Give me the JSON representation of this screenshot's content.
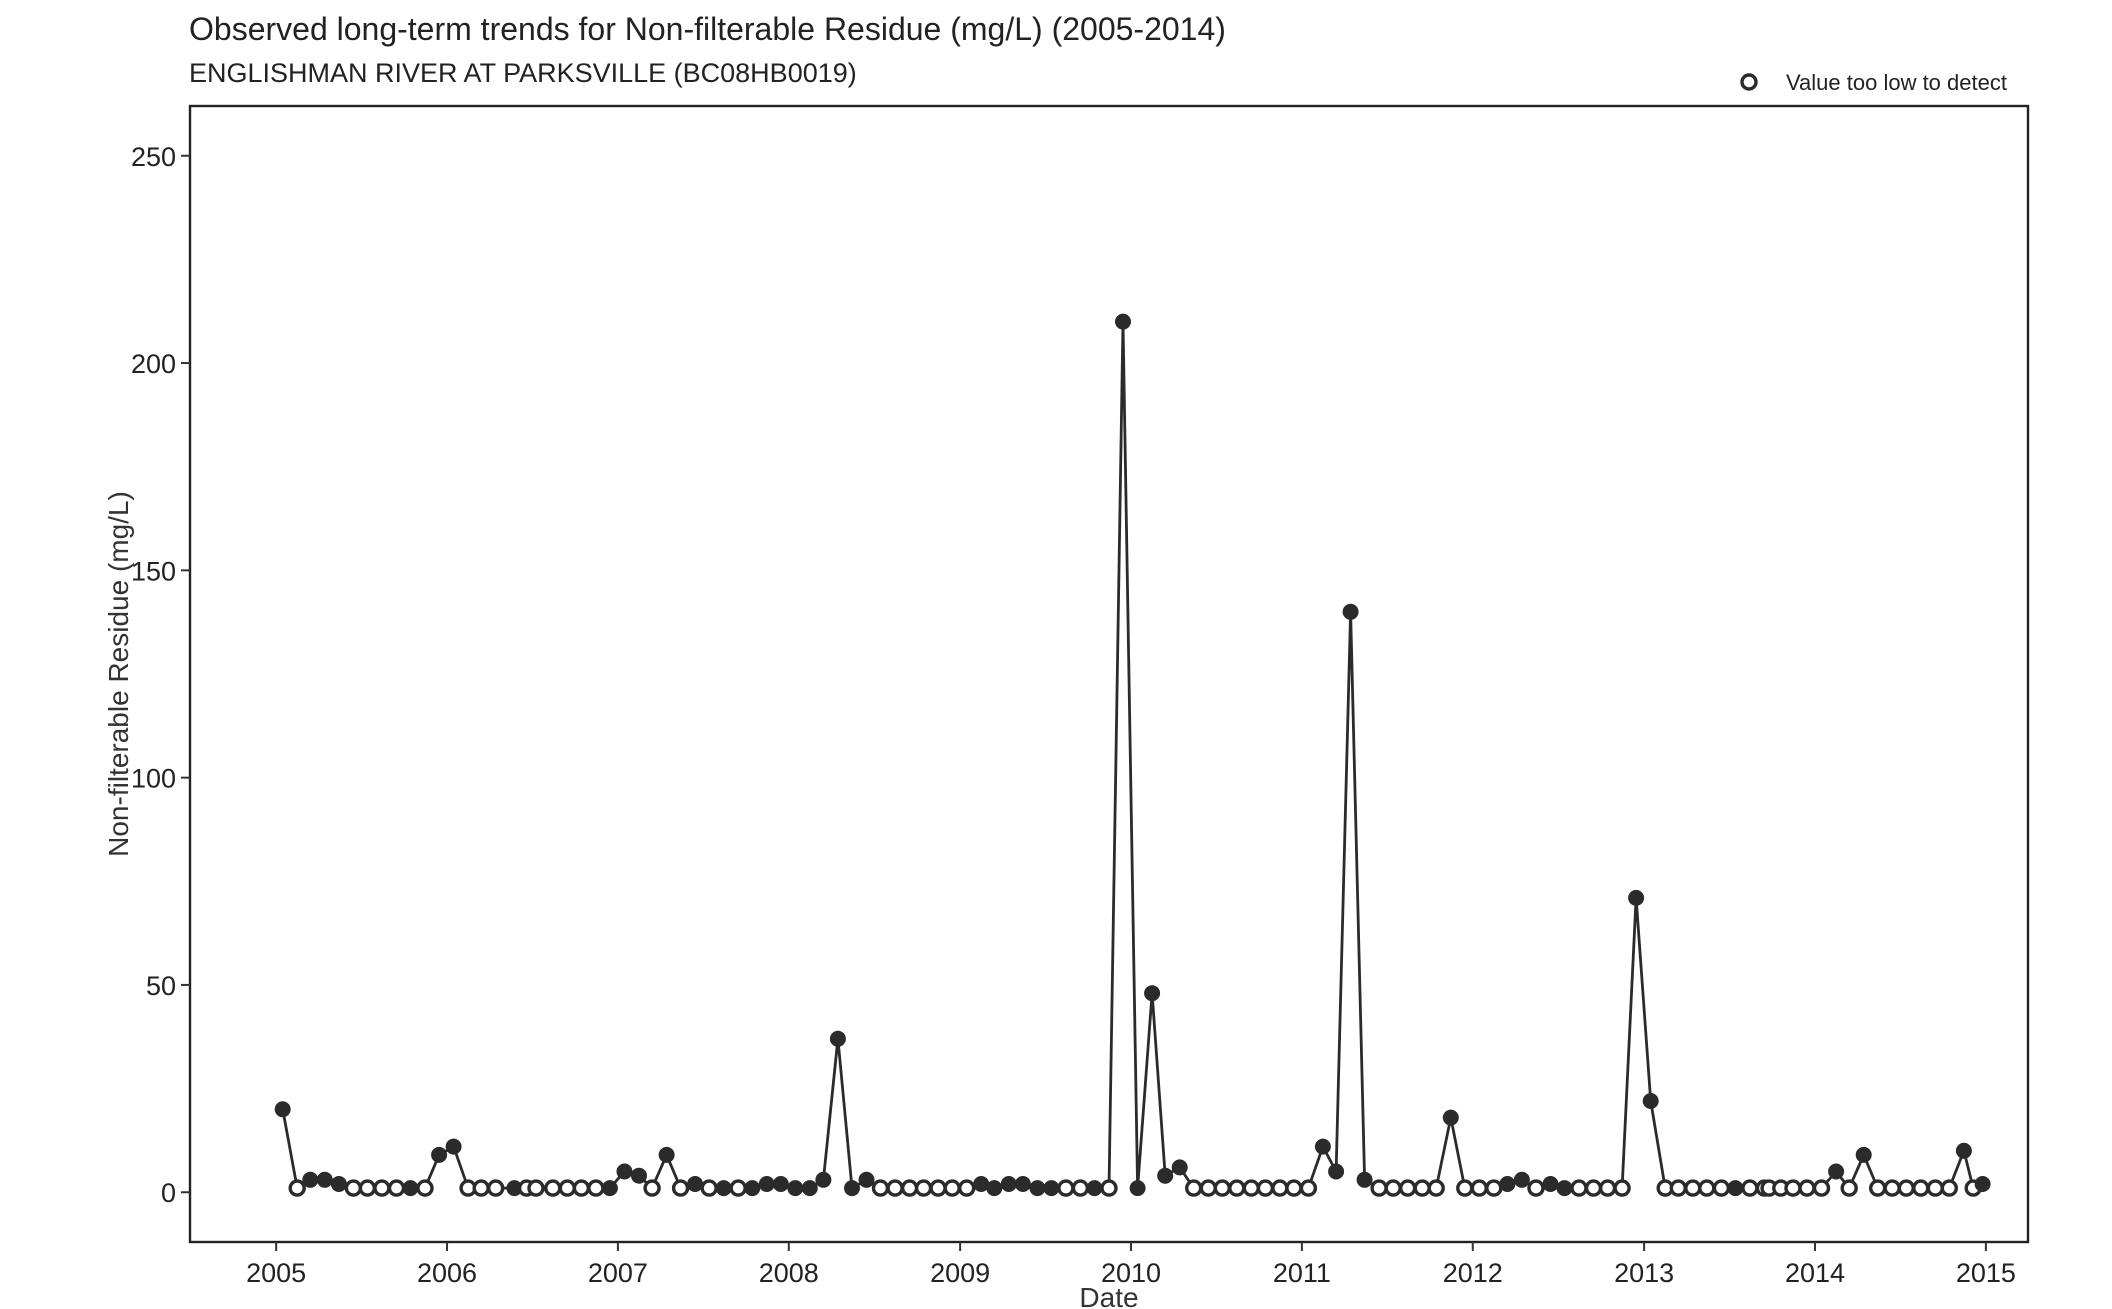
{
  "chart_data": {
    "type": "scatter",
    "title": "Observed long-term trends for Non-filterable Residue (mg/L) (2005-2014)",
    "subtitle": "ENGLISHMAN RIVER AT PARKSVILLE (BC08HB0019)",
    "xlabel": "Date",
    "ylabel": "Non-filterable Residue (mg/L)",
    "xlim": [
      "2004-07-01",
      "2015-04-01"
    ],
    "ylim": [
      -12,
      262
    ],
    "x_ticks": [
      "2005",
      "2006",
      "2007",
      "2008",
      "2009",
      "2010",
      "2011",
      "2012",
      "2013",
      "2014",
      "2015"
    ],
    "y_ticks": [
      0,
      50,
      100,
      150,
      200,
      250
    ],
    "grid": false,
    "legend": {
      "position": "top-right",
      "entries": [
        {
          "label": "Value too low to detect",
          "marker": "open-circle"
        }
      ]
    },
    "series": [
      {
        "connected": true,
        "points": [
          {
            "x": "2005-01-15",
            "y": 20,
            "dl": false
          },
          {
            "x": "2005-02-15",
            "y": 1,
            "dl": true
          },
          {
            "x": "2005-03-15",
            "y": 3,
            "dl": false
          },
          {
            "x": "2005-04-15",
            "y": 3,
            "dl": false
          },
          {
            "x": "2005-05-15",
            "y": 2,
            "dl": false
          },
          {
            "x": "2005-06-15",
            "y": 1,
            "dl": true
          },
          {
            "x": "2005-07-15",
            "y": 1,
            "dl": true
          },
          {
            "x": "2005-08-15",
            "y": 1,
            "dl": true
          },
          {
            "x": "2005-09-15",
            "y": 1,
            "dl": true
          },
          {
            "x": "2005-10-15",
            "y": 1,
            "dl": false
          },
          {
            "x": "2005-11-15",
            "y": 1,
            "dl": true
          },
          {
            "x": "2005-12-15",
            "y": 9,
            "dl": false
          },
          {
            "x": "2006-01-15",
            "y": 11,
            "dl": false
          },
          {
            "x": "2006-02-15",
            "y": 1,
            "dl": true
          },
          {
            "x": "2006-03-15",
            "y": 1,
            "dl": true
          },
          {
            "x": "2006-04-15",
            "y": 1,
            "dl": true
          },
          {
            "x": "2006-05-25",
            "y": 1,
            "dl": false
          },
          {
            "x": "2006-06-20",
            "y": 1,
            "dl": true
          },
          {
            "x": "2006-07-10",
            "y": 1,
            "dl": true
          },
          {
            "x": "2006-08-15",
            "y": 1,
            "dl": true
          },
          {
            "x": "2006-09-15",
            "y": 1,
            "dl": true
          },
          {
            "x": "2006-10-15",
            "y": 1,
            "dl": true
          },
          {
            "x": "2006-11-15",
            "y": 1,
            "dl": true
          },
          {
            "x": "2006-12-15",
            "y": 1,
            "dl": false
          },
          {
            "x": "2007-01-15",
            "y": 5,
            "dl": false
          },
          {
            "x": "2007-02-15",
            "y": 4,
            "dl": false
          },
          {
            "x": "2007-03-15",
            "y": 1,
            "dl": true
          },
          {
            "x": "2007-04-15",
            "y": 9,
            "dl": false
          },
          {
            "x": "2007-05-15",
            "y": 1,
            "dl": true
          },
          {
            "x": "2007-06-15",
            "y": 2,
            "dl": false
          },
          {
            "x": "2007-07-15",
            "y": 1,
            "dl": true
          },
          {
            "x": "2007-08-15",
            "y": 1,
            "dl": false
          },
          {
            "x": "2007-09-15",
            "y": 1,
            "dl": true
          },
          {
            "x": "2007-10-15",
            "y": 1,
            "dl": false
          },
          {
            "x": "2007-11-15",
            "y": 2,
            "dl": false
          },
          {
            "x": "2007-12-15",
            "y": 2,
            "dl": false
          },
          {
            "x": "2008-01-15",
            "y": 1,
            "dl": false
          },
          {
            "x": "2008-02-15",
            "y": 1,
            "dl": false
          },
          {
            "x": "2008-03-15",
            "y": 3,
            "dl": false
          },
          {
            "x": "2008-04-15",
            "y": 37,
            "dl": false
          },
          {
            "x": "2008-05-15",
            "y": 1,
            "dl": false
          },
          {
            "x": "2008-06-15",
            "y": 3,
            "dl": false
          },
          {
            "x": "2008-07-15",
            "y": 1,
            "dl": true
          },
          {
            "x": "2008-08-15",
            "y": 1,
            "dl": true
          },
          {
            "x": "2008-09-15",
            "y": 1,
            "dl": true
          },
          {
            "x": "2008-10-15",
            "y": 1,
            "dl": true
          },
          {
            "x": "2008-11-15",
            "y": 1,
            "dl": true
          },
          {
            "x": "2008-12-15",
            "y": 1,
            "dl": true
          },
          {
            "x": "2009-01-15",
            "y": 1,
            "dl": true
          },
          {
            "x": "2009-02-15",
            "y": 2,
            "dl": false
          },
          {
            "x": "2009-03-15",
            "y": 1,
            "dl": false
          },
          {
            "x": "2009-04-15",
            "y": 2,
            "dl": false
          },
          {
            "x": "2009-05-15",
            "y": 2,
            "dl": false
          },
          {
            "x": "2009-06-15",
            "y": 1,
            "dl": false
          },
          {
            "x": "2009-07-15",
            "y": 1,
            "dl": false
          },
          {
            "x": "2009-08-15",
            "y": 1,
            "dl": true
          },
          {
            "x": "2009-09-15",
            "y": 1,
            "dl": true
          },
          {
            "x": "2009-10-15",
            "y": 1,
            "dl": false
          },
          {
            "x": "2009-11-15",
            "y": 1,
            "dl": true
          },
          {
            "x": "2009-12-15",
            "y": 210,
            "dl": false
          },
          {
            "x": "2010-01-15",
            "y": 1,
            "dl": false
          },
          {
            "x": "2010-02-15",
            "y": 48,
            "dl": false
          },
          {
            "x": "2010-03-15",
            "y": 4,
            "dl": false
          },
          {
            "x": "2010-04-15",
            "y": 6,
            "dl": false
          },
          {
            "x": "2010-05-15",
            "y": 1,
            "dl": true
          },
          {
            "x": "2010-06-15",
            "y": 1,
            "dl": true
          },
          {
            "x": "2010-07-15",
            "y": 1,
            "dl": true
          },
          {
            "x": "2010-08-15",
            "y": 1,
            "dl": true
          },
          {
            "x": "2010-09-15",
            "y": 1,
            "dl": true
          },
          {
            "x": "2010-10-15",
            "y": 1,
            "dl": true
          },
          {
            "x": "2010-11-15",
            "y": 1,
            "dl": true
          },
          {
            "x": "2010-12-15",
            "y": 1,
            "dl": true
          },
          {
            "x": "2011-01-15",
            "y": 1,
            "dl": true
          },
          {
            "x": "2011-02-15",
            "y": 11,
            "dl": false
          },
          {
            "x": "2011-03-15",
            "y": 5,
            "dl": false
          },
          {
            "x": "2011-04-15",
            "y": 140,
            "dl": false
          },
          {
            "x": "2011-05-15",
            "y": 3,
            "dl": false
          },
          {
            "x": "2011-06-15",
            "y": 1,
            "dl": true
          },
          {
            "x": "2011-07-15",
            "y": 1,
            "dl": true
          },
          {
            "x": "2011-08-15",
            "y": 1,
            "dl": true
          },
          {
            "x": "2011-09-15",
            "y": 1,
            "dl": true
          },
          {
            "x": "2011-10-15",
            "y": 1,
            "dl": true
          },
          {
            "x": "2011-11-15",
            "y": 18,
            "dl": false
          },
          {
            "x": "2011-12-15",
            "y": 1,
            "dl": true
          },
          {
            "x": "2012-01-15",
            "y": 1,
            "dl": true
          },
          {
            "x": "2012-02-15",
            "y": 1,
            "dl": true
          },
          {
            "x": "2012-03-15",
            "y": 2,
            "dl": false
          },
          {
            "x": "2012-04-15",
            "y": 3,
            "dl": false
          },
          {
            "x": "2012-05-15",
            "y": 1,
            "dl": true
          },
          {
            "x": "2012-06-15",
            "y": 2,
            "dl": false
          },
          {
            "x": "2012-07-15",
            "y": 1,
            "dl": false
          },
          {
            "x": "2012-08-15",
            "y": 1,
            "dl": true
          },
          {
            "x": "2012-09-15",
            "y": 1,
            "dl": true
          },
          {
            "x": "2012-10-15",
            "y": 1,
            "dl": true
          },
          {
            "x": "2012-11-15",
            "y": 1,
            "dl": true
          },
          {
            "x": "2012-12-15",
            "y": 71,
            "dl": false
          },
          {
            "x": "2013-01-15",
            "y": 22,
            "dl": false
          },
          {
            "x": "2013-02-15",
            "y": 1,
            "dl": true
          },
          {
            "x": "2013-03-15",
            "y": 1,
            "dl": true
          },
          {
            "x": "2013-04-15",
            "y": 1,
            "dl": true
          },
          {
            "x": "2013-05-15",
            "y": 1,
            "dl": true
          },
          {
            "x": "2013-06-15",
            "y": 1,
            "dl": true
          },
          {
            "x": "2013-07-15",
            "y": 1,
            "dl": false
          },
          {
            "x": "2013-08-15",
            "y": 1,
            "dl": true
          },
          {
            "x": "2013-09-15",
            "y": 1,
            "dl": true
          },
          {
            "x": "2013-09-25",
            "y": 1,
            "dl": true
          },
          {
            "x": "2013-10-20",
            "y": 1,
            "dl": true
          },
          {
            "x": "2013-11-15",
            "y": 1,
            "dl": true
          },
          {
            "x": "2013-12-15",
            "y": 1,
            "dl": true
          },
          {
            "x": "2014-01-15",
            "y": 1,
            "dl": true
          },
          {
            "x": "2014-02-15",
            "y": 5,
            "dl": false
          },
          {
            "x": "2014-03-15",
            "y": 1,
            "dl": true
          },
          {
            "x": "2014-04-15",
            "y": 9,
            "dl": false
          },
          {
            "x": "2014-05-15",
            "y": 1,
            "dl": true
          },
          {
            "x": "2014-06-15",
            "y": 1,
            "dl": true
          },
          {
            "x": "2014-07-15",
            "y": 1,
            "dl": true
          },
          {
            "x": "2014-08-15",
            "y": 1,
            "dl": true
          },
          {
            "x": "2014-09-15",
            "y": 1,
            "dl": true
          },
          {
            "x": "2014-10-15",
            "y": 1,
            "dl": true
          },
          {
            "x": "2014-11-15",
            "y": 10,
            "dl": false
          },
          {
            "x": "2014-12-05",
            "y": 1,
            "dl": true
          },
          {
            "x": "2014-12-25",
            "y": 2,
            "dl": false
          }
        ]
      }
    ]
  },
  "colors": {
    "line": "#2b2b2b",
    "point": "#2b2b2b",
    "background": "#ffffff"
  }
}
